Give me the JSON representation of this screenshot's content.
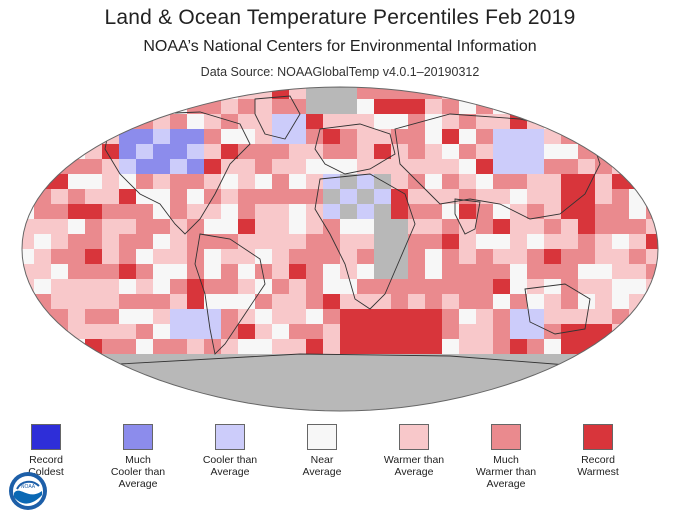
{
  "header": {
    "title": "Land & Ocean Temperature Percentiles Feb 2019",
    "subtitle": "NOAA’s National Centers for Environmental Information",
    "source": "Data Source: NOAAGlobalTemp v4.0.1–20190312"
  },
  "logo": {
    "icon": "noaa-logo-icon",
    "text": "NOAA"
  },
  "colors": {
    "no_data": "#b8b8b8",
    "ocean_border": "#555555"
  },
  "legend": [
    {
      "label": "Record\nColdest",
      "color": "#2e2ed8"
    },
    {
      "label": "Much\nCooler than\nAverage",
      "color": "#8c8cec"
    },
    {
      "label": "Cooler than\nAverage",
      "color": "#ccccfa"
    },
    {
      "label": "Near\nAverage",
      "color": "#f7f7f7"
    },
    {
      "label": "Warmer than\nAverage",
      "color": "#f8c8ca"
    },
    {
      "label": "Much\nWarmer than\nAverage",
      "color": "#ea8a8e"
    },
    {
      "label": "Record\nWarmest",
      "color": "#d8353b"
    }
  ]
}
